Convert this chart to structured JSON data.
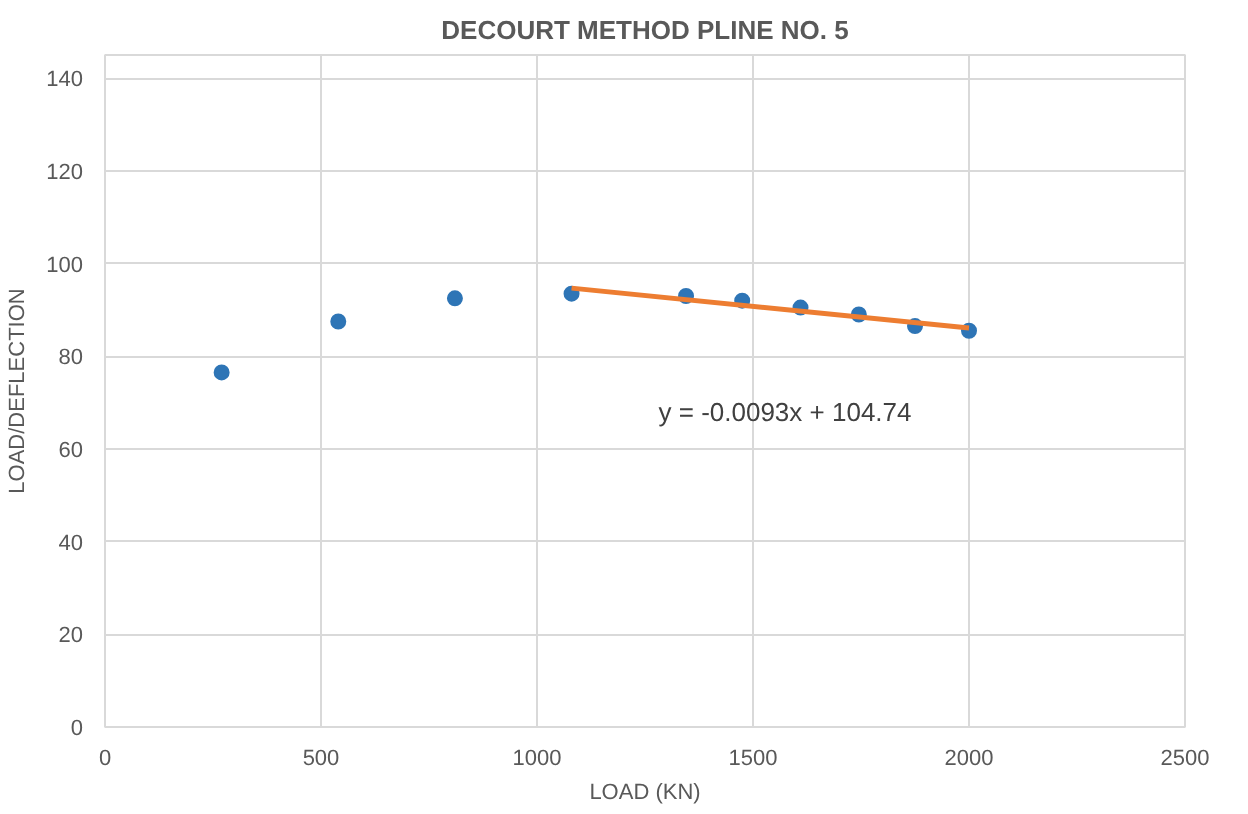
{
  "chart_data": {
    "type": "scatter",
    "title": "DECOURT METHOD PLINE NO. 5",
    "xlabel": "LOAD (KN)",
    "ylabel": "LOAD/DEFLECTION",
    "series": [
      {
        "color": "#2e75b6",
        "x": [
          270,
          540,
          810,
          1080,
          1345,
          1475,
          1610,
          1745,
          1875,
          2000
        ],
        "values": [
          76.5,
          87.5,
          92.5,
          93.5,
          93,
          92,
          90.5,
          89,
          86.5,
          85.5
        ],
        "marker": "circle"
      },
      {
        "type": "line",
        "color": "#ed7d31",
        "x": [
          1080,
          2000
        ],
        "values": [
          94.7,
          86.1
        ]
      }
    ],
    "annotations": [
      "y = -0.0093x + 104.74"
    ],
    "xlim": [
      0,
      2500
    ],
    "ylim": [
      0,
      145
    ],
    "xticks": [
      0,
      500,
      1000,
      1500,
      2000,
      2500
    ],
    "yticks": [
      0,
      20,
      40,
      60,
      80,
      100,
      120,
      140
    ],
    "grid": true
  }
}
